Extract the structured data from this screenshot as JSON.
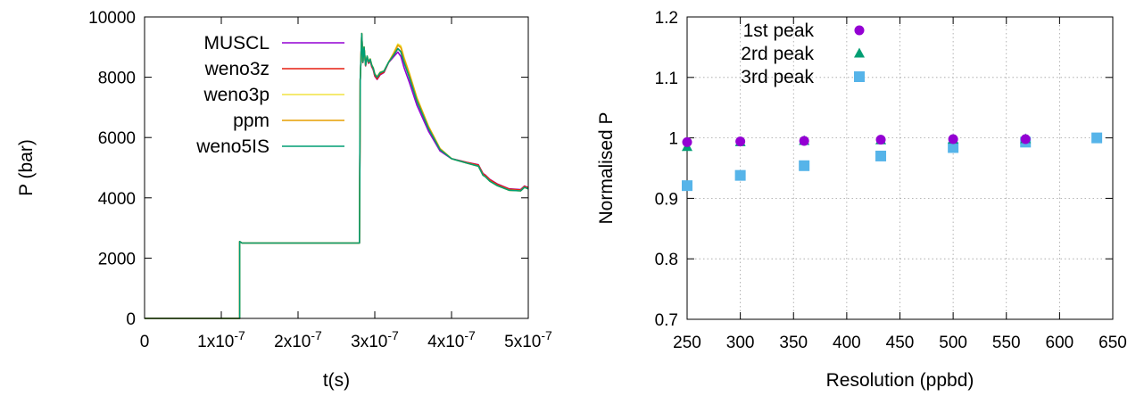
{
  "chart_data": [
    {
      "type": "line",
      "xlabel": "t(s)",
      "ylabel": "P (bar)",
      "xlim": [
        0,
        5e-07
      ],
      "ylim": [
        0,
        10000
      ],
      "xticks": [
        0,
        1e-07,
        2e-07,
        3e-07,
        4e-07,
        5e-07
      ],
      "xtick_labels": [
        "0",
        "1x10",
        "2x10",
        "3x10",
        "4x10",
        "5x10"
      ],
      "xtick_exponent": "-7",
      "yticks": [
        0,
        2000,
        4000,
        6000,
        8000,
        10000
      ],
      "ytick_labels": [
        "0",
        "2000",
        "4000",
        "6000",
        "8000",
        "10000"
      ],
      "legend_position": "top-left",
      "grid": false,
      "series": [
        {
          "name": "MUSCL",
          "color": "#9400d3",
          "dy": [
            0,
            0,
            0,
            -80,
            0,
            -150,
            -180,
            0,
            60,
            40
          ]
        },
        {
          "name": "weno3z",
          "color": "#e51e10",
          "dy": [
            0,
            0,
            0,
            -60,
            0,
            0,
            0,
            0,
            50,
            30
          ]
        },
        {
          "name": "weno3p",
          "color": "#f0e442",
          "dy": [
            0,
            0,
            0,
            20,
            0,
            200,
            160,
            0,
            0,
            0
          ]
        },
        {
          "name": "ppm",
          "color": "#e69f00",
          "dy": [
            0,
            0,
            0,
            10,
            0,
            140,
            120,
            0,
            0,
            0
          ]
        },
        {
          "name": "weno5IS",
          "color": "#009e73",
          "dy": [
            0,
            0,
            0,
            0,
            0,
            0,
            0,
            0,
            0,
            0
          ]
        }
      ],
      "base_curve": {
        "x": [
          0,
          1.24e-07,
          1.24e-07,
          1.27e-07,
          2.8e-07,
          2.81e-07,
          2.83e-07,
          2.845e-07,
          2.86e-07,
          2.88e-07,
          2.9e-07,
          2.92e-07,
          2.94e-07,
          2.96e-07,
          2.98e-07,
          3e-07,
          3.03e-07,
          3.07e-07,
          3.12e-07,
          3.18e-07,
          3.25e-07,
          3.3e-07,
          3.34e-07,
          3.38e-07,
          3.45e-07,
          3.55e-07,
          3.7e-07,
          3.85e-07,
          4e-07,
          4.2e-07,
          4.35e-07,
          4.38e-07,
          4.41e-07,
          4.44e-07,
          4.5e-07,
          4.6e-07,
          4.75e-07,
          4.9e-07,
          4.95e-07,
          5e-07
        ],
        "y": [
          0,
          0,
          2550,
          2500,
          2500,
          7900,
          9450,
          8500,
          9000,
          8400,
          8700,
          8500,
          8600,
          8400,
          8300,
          8100,
          8000,
          8150,
          8200,
          8500,
          8750,
          8950,
          8850,
          8500,
          8000,
          7200,
          6300,
          5600,
          5300,
          5150,
          5050,
          4900,
          4750,
          4700,
          4550,
          4400,
          4250,
          4230,
          4350,
          4300
        ]
      },
      "dy_anchor_x": [
        0,
        1.24e-07,
        2.8e-07,
        3.05e-07,
        3.2e-07,
        3.33e-07,
        3.4e-07,
        4e-07,
        4.45e-07,
        5e-07
      ]
    },
    {
      "type": "scatter",
      "xlabel": "Resolution (ppbd)",
      "ylabel": "Normalised P",
      "xlim": [
        250,
        650
      ],
      "ylim": [
        0.7,
        1.2
      ],
      "xticks": [
        250,
        300,
        350,
        400,
        450,
        500,
        550,
        600,
        650
      ],
      "xtick_labels": [
        "250",
        "300",
        "350",
        "400",
        "450",
        "500",
        "550",
        "600",
        "650"
      ],
      "yticks": [
        0.7,
        0.8,
        0.9,
        1.0,
        1.1,
        1.2
      ],
      "ytick_labels": [
        "0.7",
        "0.8",
        "0.9",
        "1",
        "1.1",
        "1.2"
      ],
      "legend_position": "top-left",
      "grid": true,
      "series": [
        {
          "name": "1st peak",
          "color": "#9400d3",
          "marker": "circle",
          "x": [
            250,
            300,
            360,
            432,
            500,
            568
          ],
          "y": [
            0.993,
            0.994,
            0.995,
            0.997,
            0.998,
            0.998
          ]
        },
        {
          "name": "2rd peak",
          "color": "#009e73",
          "marker": "triangle",
          "x": [
            250,
            300,
            360,
            432,
            500,
            568
          ],
          "y": [
            0.985,
            0.993,
            0.995,
            0.996,
            0.997,
            0.998
          ]
        },
        {
          "name": "3rd peak",
          "color": "#56b4e9",
          "marker": "square",
          "x": [
            250,
            300,
            360,
            432,
            500,
            568,
            635
          ],
          "y": [
            0.921,
            0.938,
            0.954,
            0.97,
            0.984,
            0.993,
            1.0
          ]
        }
      ]
    }
  ]
}
